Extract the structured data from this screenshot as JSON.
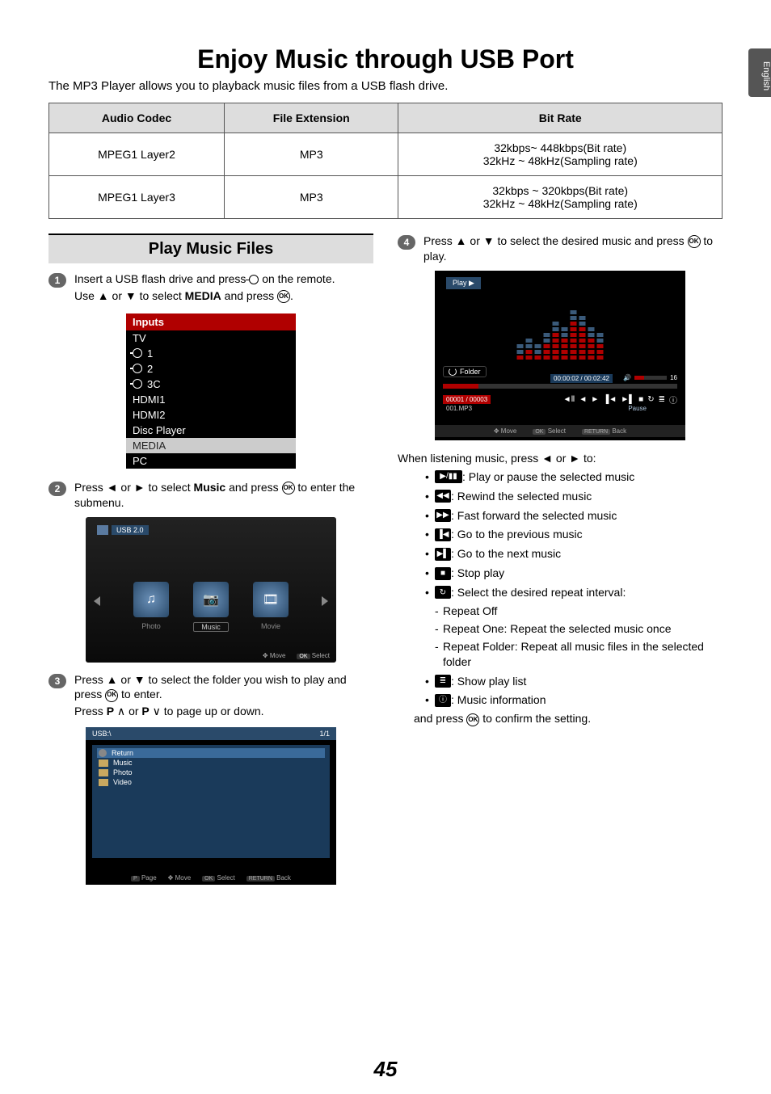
{
  "side_tab": "English",
  "title": "Enjoy Music through USB Port",
  "intro": "The MP3 Player allows you to playback music files from a USB flash drive.",
  "spec_table": {
    "headers": [
      "Audio Codec",
      "File Extension",
      "Bit Rate"
    ],
    "rows": [
      [
        "MPEG1 Layer2",
        "MP3",
        "32kbps~ 448kbps(Bit rate)\n32kHz ~ 48kHz(Sampling rate)"
      ],
      [
        "MPEG1 Layer3",
        "MP3",
        "32kbps ~ 320kbps(Bit rate)\n32kHz ~ 48kHz(Sampling rate)"
      ]
    ]
  },
  "section_header": "Play Music Files",
  "steps": {
    "s1": {
      "num": "1",
      "line1_a": "Insert a USB flash drive and press ",
      "line1_b": " on the remote.",
      "line2_a": "Use ▲ or ▼ to select ",
      "line2_media": "MEDIA",
      "line2_b": " and press ",
      "line2_c": "."
    },
    "s2": {
      "num": "2",
      "a": "Press ◄ or ► to select ",
      "music": "Music",
      "b": " and press ",
      "c": " to enter the submenu."
    },
    "s3": {
      "num": "3",
      "a": "Press ▲ or ▼ to select the folder you wish to play and press ",
      "b": " to enter.",
      "c_a": "Press ",
      "p1": "P",
      "up": " ∧ ",
      "or": "or ",
      "p2": "P",
      "dn": " ∨ ",
      "c_b": "to page up or down."
    },
    "s4": {
      "num": "4",
      "a": "Press ▲ or ▼ to select the desired music and press ",
      "b": " to play."
    }
  },
  "inputs_box": {
    "header": "Inputs",
    "rows": [
      {
        "icon": "",
        "label": "TV"
      },
      {
        "icon": "av",
        "label": "1"
      },
      {
        "icon": "av",
        "label": "2"
      },
      {
        "icon": "av",
        "label": "3C"
      },
      {
        "icon": "",
        "label": "HDMI1"
      },
      {
        "icon": "",
        "label": "HDMI2"
      },
      {
        "icon": "",
        "label": "Disc Player"
      },
      {
        "icon": "",
        "label": "MEDIA",
        "sel": true
      },
      {
        "icon": "",
        "label": "PC"
      }
    ]
  },
  "media_panel": {
    "usb": "USB 2.0",
    "tiles": [
      "♫",
      "📷",
      "🎞"
    ],
    "labels": [
      "Photo",
      "Music",
      "Movie"
    ],
    "foot_move": "Move",
    "foot_select": "Select",
    "ok": "OK"
  },
  "folder_panel": {
    "top_left": "USB:\\",
    "top_right": "1/1",
    "rows": [
      {
        "icon": "r",
        "label": "Return",
        "sel": true
      },
      {
        "icon": "f",
        "label": "Music"
      },
      {
        "icon": "f",
        "label": "Photo"
      },
      {
        "icon": "f",
        "label": "Video"
      }
    ],
    "foot": {
      "page_p": "P",
      "page": "Page",
      "move": "Move",
      "ok": "OK",
      "select": "Select",
      "return": "RETURN",
      "back": "Back"
    }
  },
  "player_panel": {
    "play": "Play ▶",
    "folder": "Folder",
    "time": "00:00:02 / 00:02:42",
    "vol_num": "16",
    "index": "00001 / 00003",
    "fname": "001.MP3",
    "pause": "Pause",
    "eq_heights": [
      3,
      4,
      3,
      5,
      7,
      6,
      9,
      8,
      6,
      5
    ],
    "icons": [
      "◄Ⅱ",
      "◄",
      "►",
      "▐◄",
      "►▌",
      "■",
      "↻",
      "≣",
      "ⓘ"
    ],
    "foot": {
      "move": "Move",
      "ok": "OK",
      "select": "Select",
      "return": "RETURN",
      "back": "Back"
    }
  },
  "controls_intro": "When listening music, press ◄ or ► to:",
  "controls": [
    {
      "icon": "▶/▮▮",
      "wide": true,
      "text": ": Play or pause the selected music"
    },
    {
      "icon": "◀◀",
      "text": ": Rewind the selected music"
    },
    {
      "icon": "▶▶",
      "text": ": Fast forward the selected music"
    },
    {
      "icon": "▐◀",
      "text": ": Go to the previous music"
    },
    {
      "icon": "▶▌",
      "text": ": Go to the next music"
    },
    {
      "icon": "■",
      "text": ": Stop play"
    },
    {
      "icon": "↻",
      "text": ": Select the desired repeat interval:",
      "sub": [
        "Repeat Off",
        "Repeat One: Repeat the selected music once",
        "Repeat Folder: Repeat all music files in the selected folder"
      ]
    },
    {
      "icon": "≣",
      "text": ": Show play list"
    },
    {
      "icon": "ⓘ",
      "text": ": Music information"
    }
  ],
  "confirm_a": "and press ",
  "confirm_b": " to confirm the setting.",
  "page_number": "45",
  "colors": {
    "header_bg": "#dddddd",
    "accent_red": "#b00000",
    "panel_blue": "#2a4a6a"
  }
}
